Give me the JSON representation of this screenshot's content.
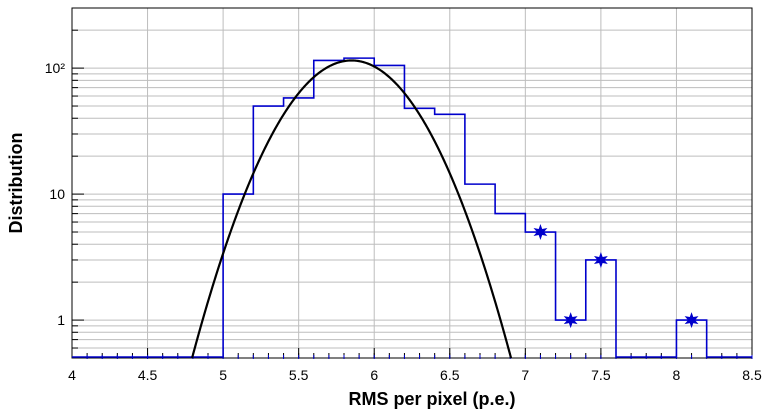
{
  "chart_data": {
    "type": "line",
    "xlabel": "RMS per pixel (p.e.)",
    "ylabel": "Distribution",
    "xlim": [
      4,
      8.5
    ],
    "ylim": [
      0.5,
      300
    ],
    "y_scale": "log",
    "grid": true,
    "x_ticks": [
      "4",
      "4.5",
      "5",
      "5.5",
      "6",
      "6.5",
      "7",
      "7.5",
      "8",
      "8.5"
    ],
    "y_ticks": [
      {
        "value": 1,
        "label": "1"
      },
      {
        "value": 10,
        "label": "10"
      },
      {
        "value": 100,
        "label": "10²"
      }
    ],
    "series": [
      {
        "kind": "step-histogram",
        "color": "#0000cc",
        "bin_edges": [
          5.0,
          5.2,
          5.4,
          5.6,
          5.8,
          6.0,
          6.2,
          6.4,
          6.6,
          6.8,
          7.0,
          7.2,
          7.4,
          7.6,
          7.8,
          8.0,
          8.2
        ],
        "counts": [
          10,
          50,
          58,
          115,
          120,
          105,
          48,
          43,
          12,
          7,
          5,
          1,
          3,
          0,
          0,
          1
        ],
        "star_markers_at_bins": [
          10,
          11,
          12,
          15
        ]
      },
      {
        "kind": "gaussian-fit",
        "color": "#000000",
        "amplitude": 115,
        "mean": 5.85,
        "sigma": 0.32
      }
    ],
    "empty_value_floor": 0.5
  }
}
